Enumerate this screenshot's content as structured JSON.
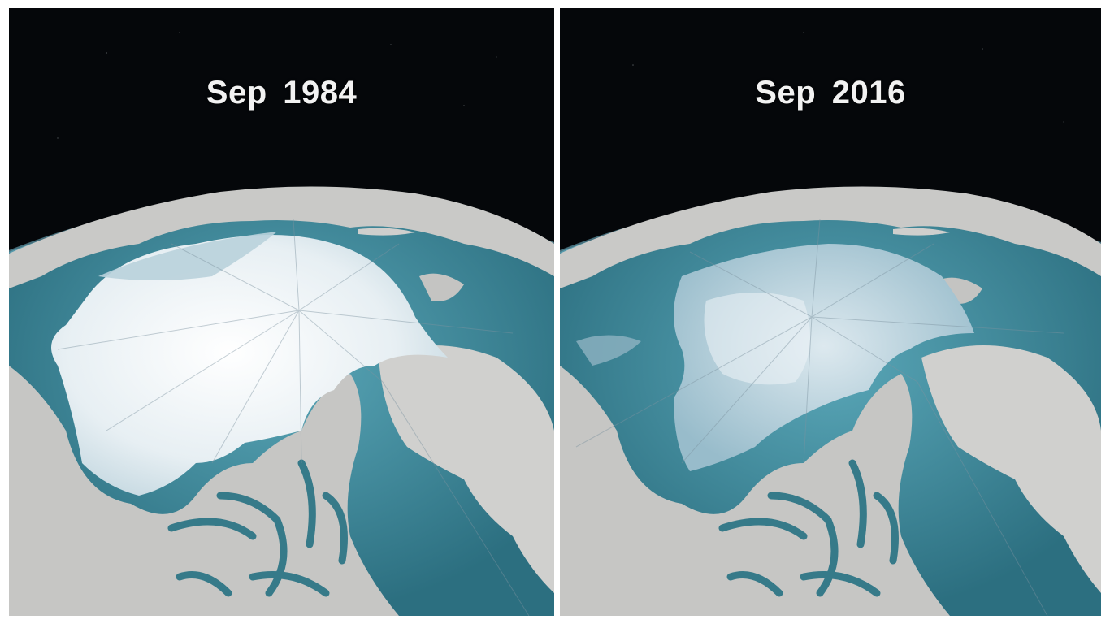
{
  "panels": [
    {
      "label": "Sep 1984"
    },
    {
      "label": "Sep 2016"
    }
  ],
  "colors": {
    "space": "#05070a",
    "ocean": "#2f7686",
    "land": "#c8c8c6",
    "sea_ice_old": "#e9f0f3",
    "sea_ice_young": "#a9c6d2"
  }
}
